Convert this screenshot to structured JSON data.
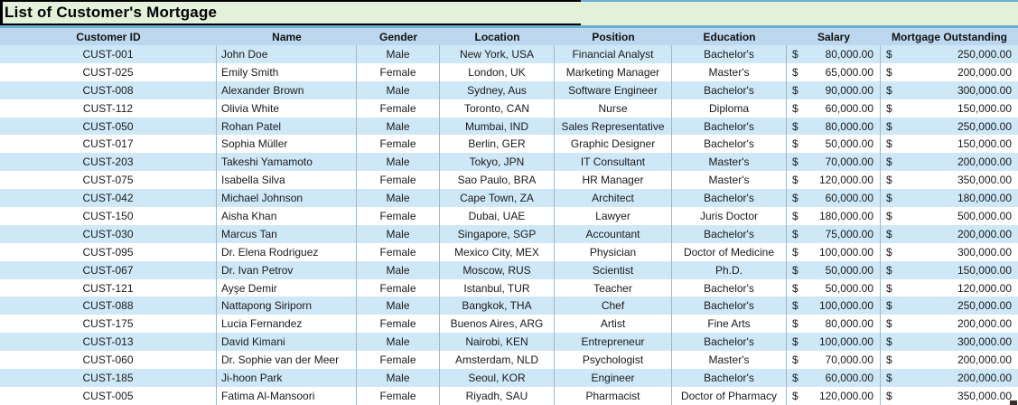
{
  "title": "List of Customer's Mortgage",
  "table": {
    "currency_symbol": "$",
    "columns": [
      {
        "key": "customer_id",
        "label": "Customer ID",
        "align": "center",
        "width_class": "c1"
      },
      {
        "key": "name",
        "label": "Name",
        "align": "left",
        "width_class": "c2"
      },
      {
        "key": "gender",
        "label": "Gender",
        "align": "center",
        "width_class": "c3"
      },
      {
        "key": "location",
        "label": "Location",
        "align": "center",
        "width_class": "c4"
      },
      {
        "key": "position",
        "label": "Position",
        "align": "center",
        "width_class": "c5"
      },
      {
        "key": "education",
        "label": "Education",
        "align": "center",
        "width_class": "c6"
      },
      {
        "key": "salary",
        "label": "Salary",
        "align": "money",
        "width_class": "c7"
      },
      {
        "key": "mortgage",
        "label": "Mortgage Outstanding",
        "align": "money",
        "width_class": "c8"
      }
    ],
    "rows": [
      {
        "customer_id": "CUST-001",
        "name": "John Doe",
        "gender": "Male",
        "location": "New York, USA",
        "position": "Financial Analyst",
        "education": "Bachelor's",
        "salary": "80,000.00",
        "mortgage": "250,000.00"
      },
      {
        "customer_id": "CUST-025",
        "name": "Emily Smith",
        "gender": "Female",
        "location": "London, UK",
        "position": "Marketing Manager",
        "education": "Master's",
        "salary": "65,000.00",
        "mortgage": "200,000.00"
      },
      {
        "customer_id": "CUST-008",
        "name": "Alexander Brown",
        "gender": "Male",
        "location": "Sydney, Aus",
        "position": "Software Engineer",
        "education": "Bachelor's",
        "salary": "90,000.00",
        "mortgage": "300,000.00"
      },
      {
        "customer_id": "CUST-112",
        "name": "Olivia White",
        "gender": "Female",
        "location": "Toronto, CAN",
        "position": "Nurse",
        "education": "Diploma",
        "salary": "60,000.00",
        "mortgage": "150,000.00"
      },
      {
        "customer_id": "CUST-050",
        "name": "Rohan Patel",
        "gender": "Male",
        "location": "Mumbai, IND",
        "position": "Sales Representative",
        "education": "Bachelor's",
        "salary": "80,000.00",
        "mortgage": "250,000.00"
      },
      {
        "customer_id": "CUST-017",
        "name": "Sophia Müller",
        "gender": "Female",
        "location": "Berlin, GER",
        "position": "Graphic Designer",
        "education": "Bachelor's",
        "salary": "50,000.00",
        "mortgage": "150,000.00"
      },
      {
        "customer_id": "CUST-203",
        "name": "Takeshi Yamamoto",
        "gender": "Male",
        "location": "Tokyo, JPN",
        "position": "IT Consultant",
        "education": "Master's",
        "salary": "70,000.00",
        "mortgage": "200,000.00"
      },
      {
        "customer_id": "CUST-075",
        "name": "Isabella Silva",
        "gender": "Female",
        "location": "Sao Paulo, BRA",
        "position": "HR Manager",
        "education": "Master's",
        "salary": "120,000.00",
        "mortgage": "350,000.00"
      },
      {
        "customer_id": "CUST-042",
        "name": "Michael Johnson",
        "gender": "Male",
        "location": "Cape Town, ZA",
        "position": "Architect",
        "education": "Bachelor's",
        "salary": "60,000.00",
        "mortgage": "180,000.00"
      },
      {
        "customer_id": "CUST-150",
        "name": "Aisha Khan",
        "gender": "Female",
        "location": "Dubai, UAE",
        "position": "Lawyer",
        "education": "Juris Doctor",
        "salary": "180,000.00",
        "mortgage": "500,000.00"
      },
      {
        "customer_id": "CUST-030",
        "name": "Marcus Tan",
        "gender": "Male",
        "location": "Singapore, SGP",
        "position": "Accountant",
        "education": "Bachelor's",
        "salary": "75,000.00",
        "mortgage": "200,000.00"
      },
      {
        "customer_id": "CUST-095",
        "name": "Dr. Elena Rodriguez",
        "gender": "Female",
        "location": "Mexico City, MEX",
        "position": "Physician",
        "education": "Doctor of Medicine",
        "salary": "100,000.00",
        "mortgage": "300,000.00"
      },
      {
        "customer_id": "CUST-067",
        "name": "Dr. Ivan Petrov",
        "gender": "Male",
        "location": "Moscow, RUS",
        "position": "Scientist",
        "education": "Ph.D.",
        "salary": "50,000.00",
        "mortgage": "150,000.00"
      },
      {
        "customer_id": "CUST-121",
        "name": "Ayşe Demir",
        "gender": "Female",
        "location": "Istanbul, TUR",
        "position": "Teacher",
        "education": "Bachelor's",
        "salary": "50,000.00",
        "mortgage": "120,000.00"
      },
      {
        "customer_id": "CUST-088",
        "name": "Nattapong Siriporn",
        "gender": "Male",
        "location": "Bangkok, THA",
        "position": "Chef",
        "education": "Bachelor's",
        "salary": "100,000.00",
        "mortgage": "250,000.00"
      },
      {
        "customer_id": "CUST-175",
        "name": "Lucia Fernandez",
        "gender": "Female",
        "location": "Buenos Aires, ARG",
        "position": "Artist",
        "education": "Fine Arts",
        "salary": "80,000.00",
        "mortgage": "200,000.00"
      },
      {
        "customer_id": "CUST-013",
        "name": "David Kimani",
        "gender": "Male",
        "location": "Nairobi, KEN",
        "position": "Entrepreneur",
        "education": "Bachelor's",
        "salary": "100,000.00",
        "mortgage": "300,000.00"
      },
      {
        "customer_id": "CUST-060",
        "name": "Dr. Sophie van der Meer",
        "gender": "Female",
        "location": "Amsterdam, NLD",
        "position": "Psychologist",
        "education": "Master's",
        "salary": "70,000.00",
        "mortgage": "200,000.00"
      },
      {
        "customer_id": "CUST-185",
        "name": "Ji-hoon Park",
        "gender": "Male",
        "location": "Seoul, KOR",
        "position": "Engineer",
        "education": "Bachelor's",
        "salary": "60,000.00",
        "mortgage": "200,000.00"
      },
      {
        "customer_id": "CUST-005",
        "name": "Fatima Al-Mansoori",
        "gender": "Female",
        "location": "Riyadh, SAU",
        "position": "Pharmacist",
        "education": "Doctor of Pharmacy",
        "salary": "120,000.00",
        "mortgage": "350,000.00"
      }
    ]
  },
  "colors": {
    "title_bg": "#E3F0DA",
    "accent_line": "#6AAFD2",
    "header_bg": "#BDD7EE",
    "row_stripe_blue": "#CFE8F8",
    "row_white": "#FFFFFF",
    "grid_line": "#A3B6C4",
    "text": "#1A1A1A",
    "corner_mark": "#3D2B2B"
  }
}
